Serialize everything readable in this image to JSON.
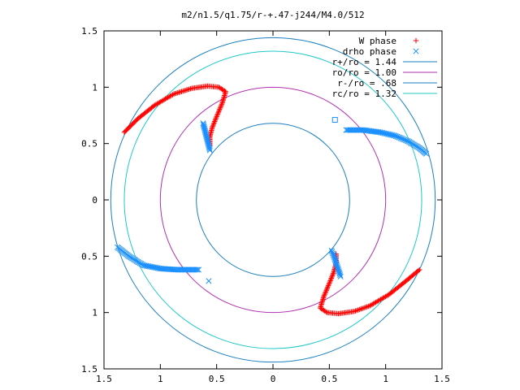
{
  "chart_data": {
    "type": "scatter",
    "title": "m2/n1.5/q1.75/r-+.47-j244/M4.0/512",
    "xlim": [
      -1.5,
      1.5
    ],
    "ylim": [
      -1.5,
      1.5
    ],
    "x_ticks": [
      -1.5,
      -1,
      -0.5,
      0,
      0.5,
      1,
      1.5
    ],
    "y_ticks": [
      -1.5,
      -1,
      -0.5,
      0,
      0.5,
      1,
      1.5
    ],
    "x_tick_labels": [
      "1.5",
      "1",
      "0.5",
      "0",
      "0.5",
      "1",
      "1.5"
    ],
    "y_tick_labels": [
      "1.5",
      "1",
      "0.5",
      "0",
      "0.5",
      "1",
      "1.5"
    ],
    "grid": false,
    "legend_position": "top-right",
    "circles": [
      {
        "name": "r+/ro = 1.44",
        "radius": 1.44,
        "color": "#1a7fc1"
      },
      {
        "name": "ro/ro = 1.00",
        "radius": 1.0,
        "color": "#b030b0"
      },
      {
        "name": "r-/ro = .68",
        "radius": 0.68,
        "color": "#1a7fc1"
      },
      {
        "name": "rc/ro = 1.32",
        "radius": 1.32,
        "color": "#20c8c8"
      }
    ],
    "series": [
      {
        "name": "W phase",
        "marker": "plus",
        "color": "#ff0000",
        "arms": [
          [
            [
              -1.32,
              0.6
            ],
            [
              -1.2,
              0.72
            ],
            [
              -1.05,
              0.84
            ],
            [
              -0.88,
              0.94
            ],
            [
              -0.72,
              0.99
            ],
            [
              -0.58,
              1.01
            ],
            [
              -0.48,
              1.0
            ],
            [
              -0.42,
              0.96
            ],
            [
              -0.45,
              0.86
            ],
            [
              -0.5,
              0.74
            ],
            [
              -0.54,
              0.64
            ],
            [
              -0.56,
              0.56
            ],
            [
              -0.56,
              0.48
            ]
          ],
          [
            [
              1.3,
              -0.62
            ],
            [
              1.18,
              -0.72
            ],
            [
              1.03,
              -0.84
            ],
            [
              0.86,
              -0.94
            ],
            [
              0.72,
              -0.99
            ],
            [
              0.58,
              -1.01
            ],
            [
              0.48,
              -1.0
            ],
            [
              0.42,
              -0.96
            ],
            [
              0.45,
              -0.86
            ],
            [
              0.5,
              -0.74
            ],
            [
              0.54,
              -0.64
            ],
            [
              0.56,
              -0.56
            ],
            [
              0.56,
              -0.48
            ]
          ]
        ]
      },
      {
        "name": "drho phase",
        "marker": "cross",
        "color": "#1a8fff",
        "arms": [
          [
            [
              -0.62,
              0.68
            ],
            [
              -0.6,
              0.6
            ],
            [
              -0.58,
              0.52
            ],
            [
              -0.56,
              0.44
            ]
          ],
          [
            [
              0.65,
              0.62
            ],
            [
              0.8,
              0.62
            ],
            [
              0.95,
              0.6
            ],
            [
              1.08,
              0.57
            ],
            [
              1.2,
              0.52
            ],
            [
              1.3,
              0.46
            ],
            [
              1.36,
              0.41
            ]
          ],
          [
            [
              -1.38,
              -0.42
            ],
            [
              -1.28,
              -0.5
            ],
            [
              -1.15,
              -0.58
            ],
            [
              -1.0,
              -0.61
            ],
            [
              -0.85,
              -0.62
            ],
            [
              -0.72,
              -0.62
            ],
            [
              -0.66,
              -0.62
            ]
          ],
          [
            [
              0.52,
              -0.45
            ],
            [
              0.54,
              -0.5
            ],
            [
              0.56,
              -0.56
            ],
            [
              0.58,
              -0.62
            ],
            [
              0.6,
              -0.68
            ]
          ]
        ],
        "outliers": [
          [
            0.55,
            0.71
          ],
          [
            -0.57,
            -0.72
          ]
        ]
      }
    ]
  }
}
